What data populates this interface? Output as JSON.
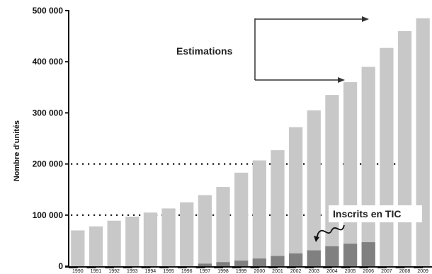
{
  "chart_data": {
    "type": "bar",
    "ylabel": "Nombre d'unités",
    "ylim": [
      0,
      500000
    ],
    "yticks": [
      {
        "value": 0,
        "label": "0"
      },
      {
        "value": 100000,
        "label": "100 000"
      },
      {
        "value": 200000,
        "label": "200 000"
      },
      {
        "value": 300000,
        "label": "300 000"
      },
      {
        "value": 400000,
        "label": "400 000"
      },
      {
        "value": 500000,
        "label": "500 000"
      }
    ],
    "reference_lines": [
      100000,
      200000
    ],
    "categories": [
      "1990",
      "1991",
      "1992",
      "1993",
      "1994",
      "1995",
      "1996",
      "1997",
      "1998",
      "1999",
      "2000",
      "2001",
      "2002",
      "2003",
      "2004",
      "2005",
      "2006",
      "2007",
      "2008",
      "2009"
    ],
    "series": [
      {
        "values": [
          70000,
          78000,
          89000,
          97000,
          105000,
          113000,
          125000,
          139000,
          155000,
          183000,
          207000,
          227000,
          272000,
          305000,
          335000,
          360000,
          390000,
          427000,
          460000,
          485000
        ]
      },
      {
        "name": "Inscrits en TIC",
        "values": [
          0,
          0,
          0,
          0,
          0,
          0,
          0,
          5000,
          8000,
          11000,
          15000,
          20000,
          25000,
          31000,
          39000,
          44000,
          47000,
          null,
          null,
          null
        ]
      }
    ],
    "colors": {
      "total": "#c8c8c8",
      "tic": "#808080"
    },
    "annotations": [
      {
        "text": "Estimations",
        "arrow_targets": [
          "2007",
          "2005"
        ]
      },
      {
        "text": "Inscrits en TIC",
        "arrow_target": "2003"
      }
    ]
  }
}
